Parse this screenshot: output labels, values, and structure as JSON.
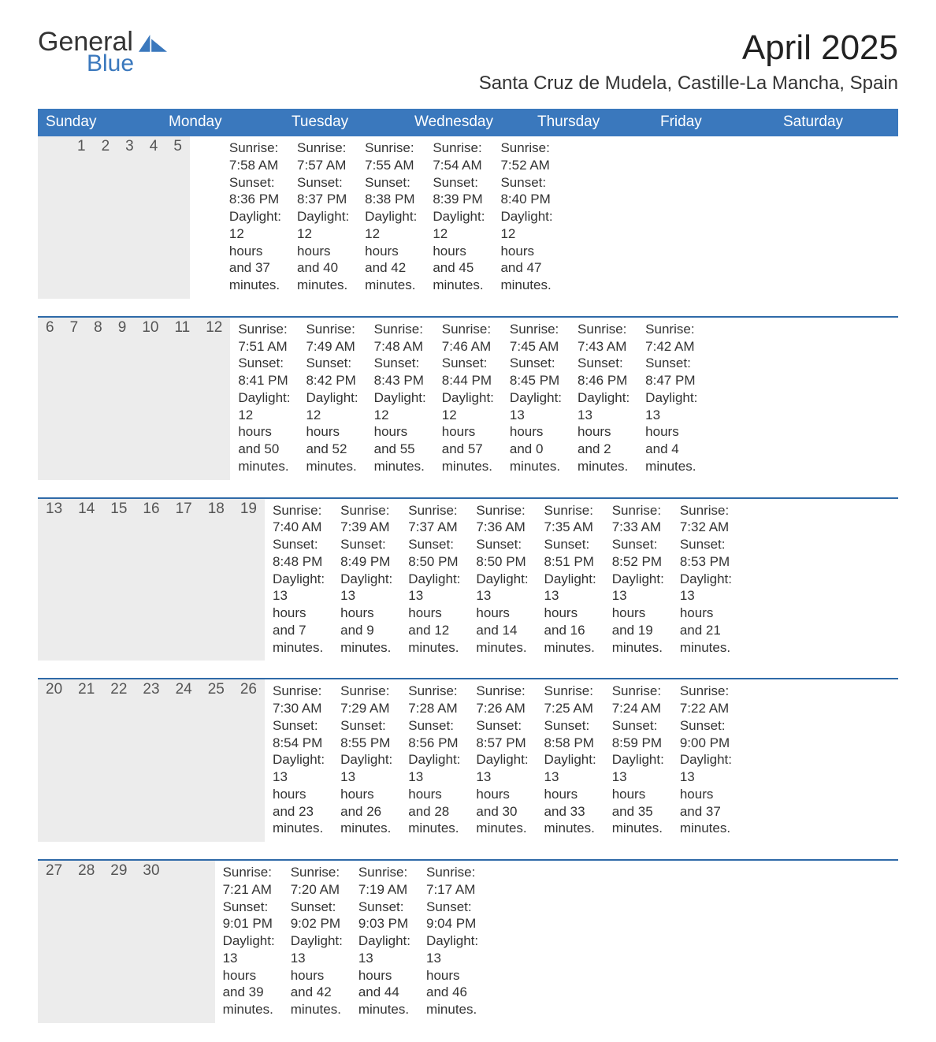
{
  "logo": {
    "word1": "General",
    "word2": "Blue"
  },
  "title": "April 2025",
  "subtitle": "Santa Cruz de Mudela, Castille-La Mancha, Spain",
  "colors": {
    "header_bg": "#3a78bd",
    "row_divider": "#2f6aa8",
    "daynum_bg": "#ececec",
    "page_bg": "#ffffff",
    "text": "#333333"
  },
  "typography": {
    "title_fontsize": 44,
    "subtitle_fontsize": 24,
    "dow_fontsize": 19,
    "daynum_fontsize": 19,
    "body_fontsize": 17,
    "font_family": "Arial"
  },
  "day_names": [
    "Sunday",
    "Monday",
    "Tuesday",
    "Wednesday",
    "Thursday",
    "Friday",
    "Saturday"
  ],
  "labels": {
    "sunrise": "Sunrise:",
    "sunset": "Sunset:",
    "daylight": "Daylight:"
  },
  "weeks": [
    [
      null,
      null,
      {
        "n": "1",
        "sunrise": "7:58 AM",
        "sunset": "8:36 PM",
        "dl1": "12 hours",
        "dl2": "and 37 minutes."
      },
      {
        "n": "2",
        "sunrise": "7:57 AM",
        "sunset": "8:37 PM",
        "dl1": "12 hours",
        "dl2": "and 40 minutes."
      },
      {
        "n": "3",
        "sunrise": "7:55 AM",
        "sunset": "8:38 PM",
        "dl1": "12 hours",
        "dl2": "and 42 minutes."
      },
      {
        "n": "4",
        "sunrise": "7:54 AM",
        "sunset": "8:39 PM",
        "dl1": "12 hours",
        "dl2": "and 45 minutes."
      },
      {
        "n": "5",
        "sunrise": "7:52 AM",
        "sunset": "8:40 PM",
        "dl1": "12 hours",
        "dl2": "and 47 minutes."
      }
    ],
    [
      {
        "n": "6",
        "sunrise": "7:51 AM",
        "sunset": "8:41 PM",
        "dl1": "12 hours",
        "dl2": "and 50 minutes."
      },
      {
        "n": "7",
        "sunrise": "7:49 AM",
        "sunset": "8:42 PM",
        "dl1": "12 hours",
        "dl2": "and 52 minutes."
      },
      {
        "n": "8",
        "sunrise": "7:48 AM",
        "sunset": "8:43 PM",
        "dl1": "12 hours",
        "dl2": "and 55 minutes."
      },
      {
        "n": "9",
        "sunrise": "7:46 AM",
        "sunset": "8:44 PM",
        "dl1": "12 hours",
        "dl2": "and 57 minutes."
      },
      {
        "n": "10",
        "sunrise": "7:45 AM",
        "sunset": "8:45 PM",
        "dl1": "13 hours",
        "dl2": "and 0 minutes."
      },
      {
        "n": "11",
        "sunrise": "7:43 AM",
        "sunset": "8:46 PM",
        "dl1": "13 hours",
        "dl2": "and 2 minutes."
      },
      {
        "n": "12",
        "sunrise": "7:42 AM",
        "sunset": "8:47 PM",
        "dl1": "13 hours",
        "dl2": "and 4 minutes."
      }
    ],
    [
      {
        "n": "13",
        "sunrise": "7:40 AM",
        "sunset": "8:48 PM",
        "dl1": "13 hours",
        "dl2": "and 7 minutes."
      },
      {
        "n": "14",
        "sunrise": "7:39 AM",
        "sunset": "8:49 PM",
        "dl1": "13 hours",
        "dl2": "and 9 minutes."
      },
      {
        "n": "15",
        "sunrise": "7:37 AM",
        "sunset": "8:50 PM",
        "dl1": "13 hours",
        "dl2": "and 12 minutes."
      },
      {
        "n": "16",
        "sunrise": "7:36 AM",
        "sunset": "8:50 PM",
        "dl1": "13 hours",
        "dl2": "and 14 minutes."
      },
      {
        "n": "17",
        "sunrise": "7:35 AM",
        "sunset": "8:51 PM",
        "dl1": "13 hours",
        "dl2": "and 16 minutes."
      },
      {
        "n": "18",
        "sunrise": "7:33 AM",
        "sunset": "8:52 PM",
        "dl1": "13 hours",
        "dl2": "and 19 minutes."
      },
      {
        "n": "19",
        "sunrise": "7:32 AM",
        "sunset": "8:53 PM",
        "dl1": "13 hours",
        "dl2": "and 21 minutes."
      }
    ],
    [
      {
        "n": "20",
        "sunrise": "7:30 AM",
        "sunset": "8:54 PM",
        "dl1": "13 hours",
        "dl2": "and 23 minutes."
      },
      {
        "n": "21",
        "sunrise": "7:29 AM",
        "sunset": "8:55 PM",
        "dl1": "13 hours",
        "dl2": "and 26 minutes."
      },
      {
        "n": "22",
        "sunrise": "7:28 AM",
        "sunset": "8:56 PM",
        "dl1": "13 hours",
        "dl2": "and 28 minutes."
      },
      {
        "n": "23",
        "sunrise": "7:26 AM",
        "sunset": "8:57 PM",
        "dl1": "13 hours",
        "dl2": "and 30 minutes."
      },
      {
        "n": "24",
        "sunrise": "7:25 AM",
        "sunset": "8:58 PM",
        "dl1": "13 hours",
        "dl2": "and 33 minutes."
      },
      {
        "n": "25",
        "sunrise": "7:24 AM",
        "sunset": "8:59 PM",
        "dl1": "13 hours",
        "dl2": "and 35 minutes."
      },
      {
        "n": "26",
        "sunrise": "7:22 AM",
        "sunset": "9:00 PM",
        "dl1": "13 hours",
        "dl2": "and 37 minutes."
      }
    ],
    [
      {
        "n": "27",
        "sunrise": "7:21 AM",
        "sunset": "9:01 PM",
        "dl1": "13 hours",
        "dl2": "and 39 minutes."
      },
      {
        "n": "28",
        "sunrise": "7:20 AM",
        "sunset": "9:02 PM",
        "dl1": "13 hours",
        "dl2": "and 42 minutes."
      },
      {
        "n": "29",
        "sunrise": "7:19 AM",
        "sunset": "9:03 PM",
        "dl1": "13 hours",
        "dl2": "and 44 minutes."
      },
      {
        "n": "30",
        "sunrise": "7:17 AM",
        "sunset": "9:04 PM",
        "dl1": "13 hours",
        "dl2": "and 46 minutes."
      },
      null,
      null,
      null
    ]
  ]
}
